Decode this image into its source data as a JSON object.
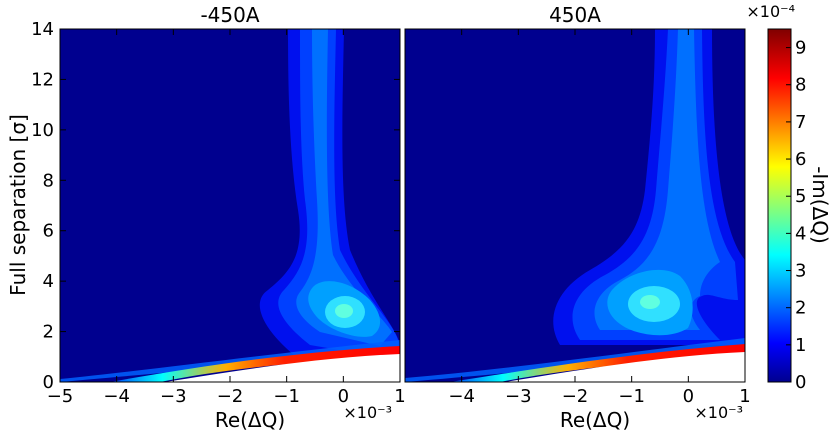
{
  "chart_data": [
    {
      "type": "heatmap",
      "title": "-450A",
      "xlabel": "Re(ΔQ)",
      "ylabel": "Full separation [σ]",
      "x_multiplier": "×10⁻³",
      "xlim": [
        -5,
        1
      ],
      "ylim": [
        0,
        14
      ],
      "x_ticks": [
        "−5",
        "−4",
        "−3",
        "−2",
        "−1",
        "0",
        "1"
      ],
      "y_ticks": [
        "0",
        "2",
        "4",
        "6",
        "8",
        "10",
        "12",
        "14"
      ],
      "colormap": "jet",
      "features": {
        "vertical_plume": {
          "x_center": -0.1,
          "y_range": [
            5,
            14
          ]
        },
        "peak_region": {
          "x": 0.0,
          "y": 2.8,
          "value": 3.2
        },
        "waist": {
          "x": 0.0,
          "y": 4.5
        },
        "diagonal_band": {
          "x_start": -5.0,
          "y_start": 0.0,
          "x_end": 1.0,
          "y_end": 1.2,
          "max_value": 9.5
        }
      }
    },
    {
      "type": "heatmap",
      "title": "450A",
      "xlabel": "Re(ΔQ)",
      "x_multiplier": "×10⁻³",
      "xlim": [
        -5,
        1
      ],
      "ylim": [
        0,
        14
      ],
      "x_ticks": [
        "−4",
        "−3",
        "−2",
        "−1",
        "0",
        "1"
      ],
      "colormap": "jet",
      "features": {
        "vertical_plume": {
          "x_center": -0.6,
          "y_range": [
            5,
            14
          ]
        },
        "peak_region": {
          "x": -0.4,
          "y": 3.0,
          "value": 3.5
        },
        "waist": {
          "x": -0.2,
          "y": 4.5
        },
        "diagonal_band": {
          "x_start": -5.0,
          "y_start": 0.0,
          "x_end": 1.0,
          "y_end": 1.3,
          "max_value": 9.5
        }
      }
    }
  ],
  "colorbar": {
    "label": "-Im(ΔQ)",
    "multiplier": "×10⁻⁴",
    "min": 0,
    "max": 9.5,
    "ticks": [
      "0",
      "1",
      "2",
      "3",
      "4",
      "5",
      "6",
      "7",
      "8",
      "9"
    ]
  }
}
